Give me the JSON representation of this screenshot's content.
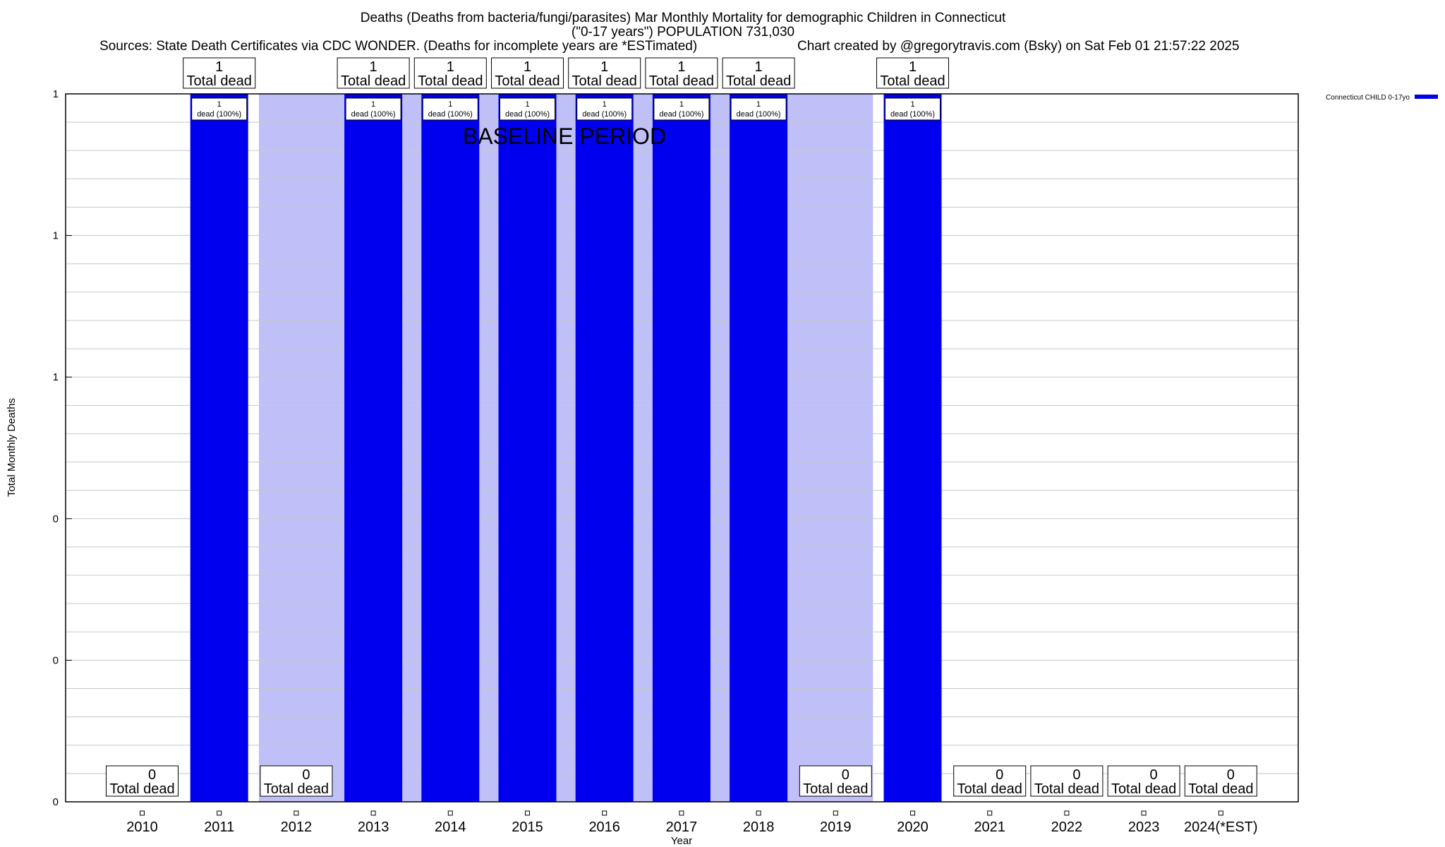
{
  "chart_data": {
    "type": "bar",
    "title": {
      "line1": "Deaths (Deaths from bacteria/fungi/parasites) Mar Monthly Mortality for demographic Children in Connecticut",
      "line2": "(\"0-17 years\") POPULATION 731,030",
      "sources": "Sources: State Death Certificates via CDC WONDER. (Deaths for incomplete years are *ESTimated)",
      "credit": "Chart created by @gregorytravis.com (Bsky) on Sat Feb 01 21:57:22 2025"
    },
    "xlabel": "Year",
    "ylabel": "Total Monthly Deaths",
    "ylim": [
      0,
      1
    ],
    "y_tick_labels": [
      "0",
      "0",
      "0",
      "1",
      "1",
      "1"
    ],
    "grid": true,
    "legend": {
      "label": "Connecticut CHILD 0-17yo",
      "color": "#0000ee",
      "placement": "top-right"
    },
    "baseline_label": "BASELINE PERIOD",
    "baseline_years": [
      "2012",
      "2019"
    ],
    "categories": [
      "2010",
      "2011",
      "2012",
      "2013",
      "2014",
      "2015",
      "2016",
      "2017",
      "2018",
      "2019",
      "2020",
      "2021",
      "2022",
      "2023",
      "2024(*EST)"
    ],
    "series": [
      {
        "name": "Connecticut CHILD 0-17yo",
        "values": [
          0,
          1,
          0,
          1,
          1,
          1,
          1,
          1,
          1,
          0,
          1,
          0,
          0,
          0,
          0
        ]
      }
    ],
    "total_label": "Total dead",
    "bar_label": "dead (100%)",
    "colors": {
      "bar": "#0000ee",
      "baseline": "#c0c0f8",
      "grid": "#c8c8c8",
      "axis": "#000000"
    }
  }
}
